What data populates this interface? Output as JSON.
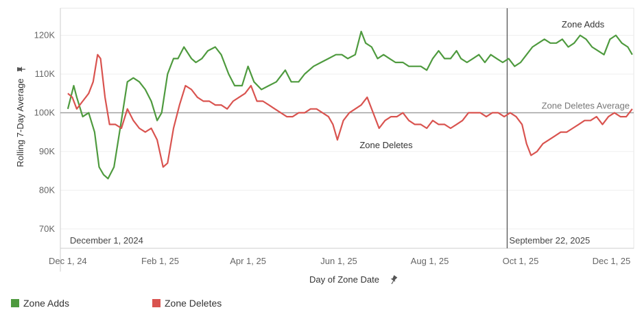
{
  "chart_data": {
    "type": "line",
    "xlabel": "Day of Zone Date",
    "ylabel": "Rolling 7-Day Average",
    "pin_icon": "pin-icon",
    "x_range_days": [
      -5,
      380
    ],
    "x_ticks": [
      {
        "label": "Dec 1, 24",
        "day": 0
      },
      {
        "label": "Feb 1, 25",
        "day": 62
      },
      {
        "label": "Apr 1, 25",
        "day": 121
      },
      {
        "label": "Jun 1, 25",
        "day": 182
      },
      {
        "label": "Aug 1, 25",
        "day": 243
      },
      {
        "label": "Oct 1, 25",
        "day": 304
      },
      {
        "label": "Dec 1, 25",
        "day": 365
      }
    ],
    "ylim": [
      65000,
      127000
    ],
    "y_ticks": [
      {
        "label": "70K",
        "value": 70000
      },
      {
        "label": "80K",
        "value": 80000
      },
      {
        "label": "90K",
        "value": 90000
      },
      {
        "label": "100K",
        "value": 100000
      },
      {
        "label": "110K",
        "value": 110000
      },
      {
        "label": "120K",
        "value": 120000
      }
    ],
    "reference_lines": [
      {
        "label": "December 1, 2024",
        "day": 0
      },
      {
        "label": "September 22, 2025",
        "day": 295
      }
    ],
    "average_line": {
      "label": "Zone Deletes Average",
      "value": 100000
    },
    "series": [
      {
        "name": "Zone Adds",
        "color": "#4e9a3e",
        "annotation": "Zone Adds",
        "points": [
          [
            0,
            101000
          ],
          [
            4,
            107000
          ],
          [
            6,
            104000
          ],
          [
            10,
            99000
          ],
          [
            14,
            100000
          ],
          [
            18,
            95000
          ],
          [
            21,
            86000
          ],
          [
            24,
            84000
          ],
          [
            27,
            83000
          ],
          [
            31,
            86000
          ],
          [
            36,
            98000
          ],
          [
            40,
            108000
          ],
          [
            44,
            109000
          ],
          [
            48,
            108000
          ],
          [
            52,
            106000
          ],
          [
            56,
            103000
          ],
          [
            60,
            98000
          ],
          [
            63,
            100000
          ],
          [
            67,
            110000
          ],
          [
            71,
            114000
          ],
          [
            74,
            114000
          ],
          [
            78,
            117000
          ],
          [
            83,
            114000
          ],
          [
            86,
            113000
          ],
          [
            90,
            114000
          ],
          [
            94,
            116000
          ],
          [
            99,
            117000
          ],
          [
            103,
            115000
          ],
          [
            108,
            110000
          ],
          [
            112,
            107000
          ],
          [
            117,
            107000
          ],
          [
            121,
            112000
          ],
          [
            125,
            108000
          ],
          [
            130,
            106000
          ],
          [
            135,
            107000
          ],
          [
            140,
            108000
          ],
          [
            146,
            111000
          ],
          [
            150,
            108000
          ],
          [
            155,
            108000
          ],
          [
            159,
            110000
          ],
          [
            165,
            112000
          ],
          [
            170,
            113000
          ],
          [
            175,
            114000
          ],
          [
            180,
            115000
          ],
          [
            184,
            115000
          ],
          [
            188,
            114000
          ],
          [
            193,
            115000
          ],
          [
            197,
            121000
          ],
          [
            200,
            118000
          ],
          [
            204,
            117000
          ],
          [
            208,
            114000
          ],
          [
            212,
            115000
          ],
          [
            216,
            114000
          ],
          [
            220,
            113000
          ],
          [
            225,
            113000
          ],
          [
            229,
            112000
          ],
          [
            233,
            112000
          ],
          [
            237,
            112000
          ],
          [
            241,
            111000
          ],
          [
            245,
            114000
          ],
          [
            249,
            116000
          ],
          [
            253,
            114000
          ],
          [
            257,
            114000
          ],
          [
            261,
            116000
          ],
          [
            264,
            114000
          ],
          [
            268,
            113000
          ],
          [
            272,
            114000
          ],
          [
            276,
            115000
          ],
          [
            280,
            113000
          ],
          [
            284,
            115000
          ],
          [
            288,
            114000
          ],
          [
            292,
            113000
          ],
          [
            296,
            114000
          ],
          [
            300,
            112000
          ],
          [
            304,
            113000
          ],
          [
            308,
            115000
          ],
          [
            312,
            117000
          ],
          [
            316,
            118000
          ],
          [
            320,
            119000
          ],
          [
            324,
            118000
          ],
          [
            328,
            118000
          ],
          [
            332,
            119000
          ],
          [
            336,
            117000
          ],
          [
            340,
            118000
          ],
          [
            344,
            120000
          ],
          [
            348,
            119000
          ],
          [
            352,
            117000
          ],
          [
            356,
            116000
          ],
          [
            360,
            115000
          ],
          [
            364,
            119000
          ],
          [
            368,
            120000
          ],
          [
            372,
            118000
          ],
          [
            376,
            117000
          ],
          [
            379,
            115000
          ]
        ]
      },
      {
        "name": "Zone Deletes",
        "color": "#d9534f",
        "annotation": "Zone Deletes",
        "points": [
          [
            0,
            105000
          ],
          [
            3,
            104000
          ],
          [
            6,
            101000
          ],
          [
            10,
            103000
          ],
          [
            14,
            105000
          ],
          [
            17,
            108000
          ],
          [
            20,
            115000
          ],
          [
            22,
            114000
          ],
          [
            25,
            104000
          ],
          [
            28,
            97000
          ],
          [
            32,
            97000
          ],
          [
            36,
            96000
          ],
          [
            40,
            101000
          ],
          [
            44,
            98000
          ],
          [
            48,
            96000
          ],
          [
            52,
            95000
          ],
          [
            56,
            96000
          ],
          [
            60,
            93000
          ],
          [
            64,
            86000
          ],
          [
            67,
            87000
          ],
          [
            71,
            96000
          ],
          [
            75,
            102000
          ],
          [
            79,
            107000
          ],
          [
            83,
            106000
          ],
          [
            87,
            104000
          ],
          [
            91,
            103000
          ],
          [
            95,
            103000
          ],
          [
            99,
            102000
          ],
          [
            103,
            102000
          ],
          [
            107,
            101000
          ],
          [
            111,
            103000
          ],
          [
            115,
            104000
          ],
          [
            119,
            105000
          ],
          [
            123,
            107000
          ],
          [
            127,
            103000
          ],
          [
            131,
            103000
          ],
          [
            135,
            102000
          ],
          [
            139,
            101000
          ],
          [
            143,
            100000
          ],
          [
            147,
            99000
          ],
          [
            151,
            99000
          ],
          [
            155,
            100000
          ],
          [
            159,
            100000
          ],
          [
            163,
            101000
          ],
          [
            167,
            101000
          ],
          [
            171,
            100000
          ],
          [
            175,
            99000
          ],
          [
            178,
            97000
          ],
          [
            181,
            93000
          ],
          [
            185,
            98000
          ],
          [
            189,
            100000
          ],
          [
            193,
            101000
          ],
          [
            197,
            102000
          ],
          [
            201,
            104000
          ],
          [
            205,
            100000
          ],
          [
            209,
            96000
          ],
          [
            213,
            98000
          ],
          [
            217,
            99000
          ],
          [
            221,
            99000
          ],
          [
            225,
            100000
          ],
          [
            229,
            98000
          ],
          [
            233,
            97000
          ],
          [
            237,
            97000
          ],
          [
            241,
            96000
          ],
          [
            245,
            98000
          ],
          [
            249,
            97000
          ],
          [
            253,
            97000
          ],
          [
            257,
            96000
          ],
          [
            261,
            97000
          ],
          [
            265,
            98000
          ],
          [
            269,
            100000
          ],
          [
            273,
            100000
          ],
          [
            277,
            100000
          ],
          [
            281,
            99000
          ],
          [
            285,
            100000
          ],
          [
            289,
            100000
          ],
          [
            293,
            99000
          ],
          [
            297,
            100000
          ],
          [
            301,
            99000
          ],
          [
            305,
            97000
          ],
          [
            308,
            92000
          ],
          [
            311,
            89000
          ],
          [
            315,
            90000
          ],
          [
            319,
            92000
          ],
          [
            323,
            93000
          ],
          [
            327,
            94000
          ],
          [
            331,
            95000
          ],
          [
            335,
            95000
          ],
          [
            339,
            96000
          ],
          [
            343,
            97000
          ],
          [
            347,
            98000
          ],
          [
            351,
            98000
          ],
          [
            355,
            99000
          ],
          [
            359,
            97000
          ],
          [
            363,
            99000
          ],
          [
            367,
            100000
          ],
          [
            371,
            99000
          ],
          [
            375,
            99000
          ],
          [
            379,
            101000
          ]
        ]
      }
    ]
  },
  "legend": [
    {
      "label": "Zone Adds",
      "color": "#4e9a3e"
    },
    {
      "label": "Zone Deletes",
      "color": "#d9534f"
    }
  ]
}
